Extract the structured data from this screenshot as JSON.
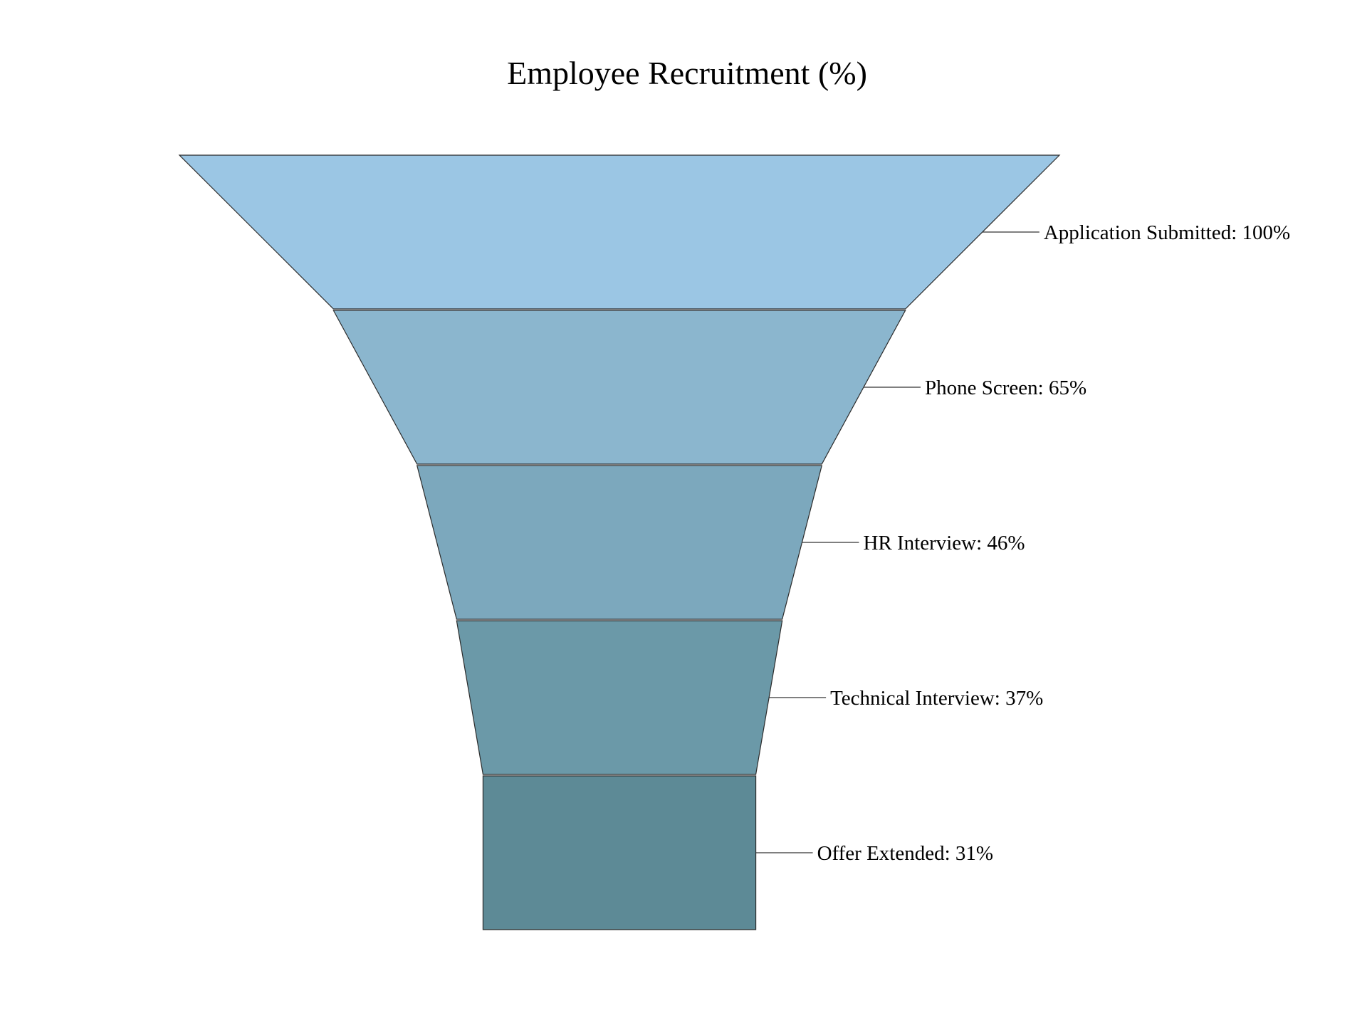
{
  "chart_data": {
    "type": "funnel",
    "title": "Employee Recruitment (%)",
    "unit": "%",
    "stages": [
      {
        "label": "Application Submitted",
        "value": 100,
        "color": "#9bc6e4"
      },
      {
        "label": "Phone Screen",
        "value": 65,
        "color": "#8bb6ce"
      },
      {
        "label": "HR Interview",
        "value": 46,
        "color": "#7ca8bd"
      },
      {
        "label": "Technical Interview",
        "value": 37,
        "color": "#6b99a8"
      },
      {
        "label": "Offer Extended",
        "value": 31,
        "color": "#5d8a96"
      }
    ],
    "grid": false,
    "legend": "none"
  }
}
